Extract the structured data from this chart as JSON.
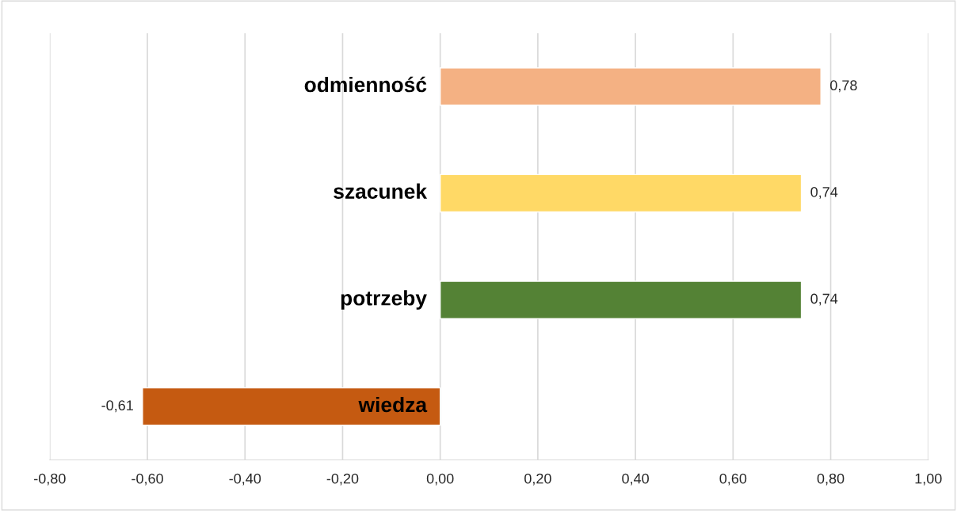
{
  "chart_data": {
    "type": "bar",
    "orientation": "horizontal",
    "categories": [
      "odmienność",
      "szacunek",
      "potrzeby",
      "wiedza"
    ],
    "values": [
      0.78,
      0.74,
      0.74,
      -0.61
    ],
    "colors": [
      "#f4b183",
      "#ffd966",
      "#548235",
      "#c55a11"
    ],
    "value_labels": [
      "0,78",
      "0,74",
      "0,74",
      "-0,61"
    ],
    "xlim": [
      -0.8,
      1.0
    ],
    "xticks": [
      {
        "value": -0.8,
        "label": "-0,80"
      },
      {
        "value": -0.6,
        "label": "-0,60"
      },
      {
        "value": -0.4,
        "label": "-0,40"
      },
      {
        "value": -0.2,
        "label": "-0,20"
      },
      {
        "value": 0.0,
        "label": "0,00"
      },
      {
        "value": 0.2,
        "label": "0,20"
      },
      {
        "value": 0.4,
        "label": "0,40"
      },
      {
        "value": 0.6,
        "label": "0,60"
      },
      {
        "value": 0.8,
        "label": "0,80"
      },
      {
        "value": 1.0,
        "label": "1,00"
      }
    ],
    "grid": "x",
    "legend": false
  }
}
